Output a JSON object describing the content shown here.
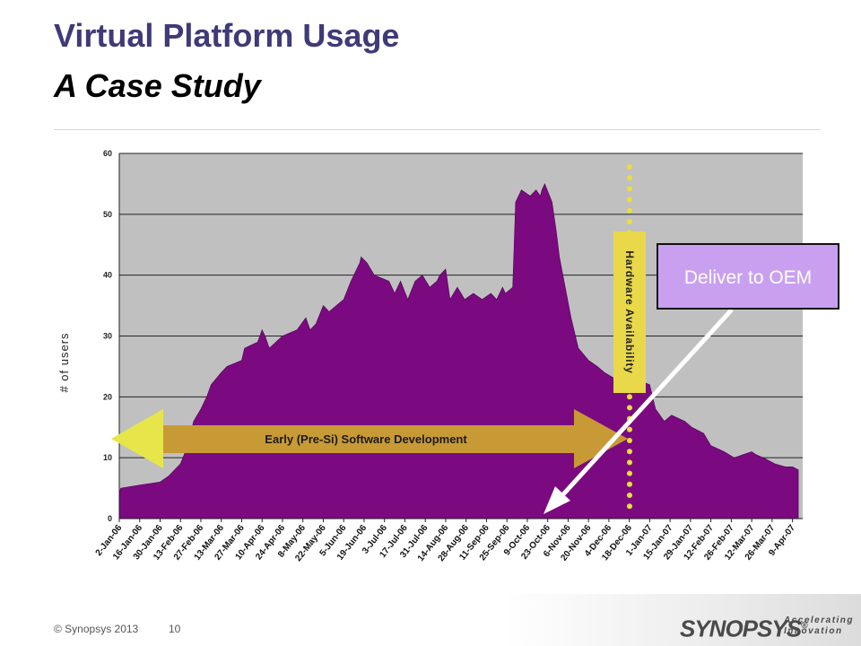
{
  "slide": {
    "title": "Virtual Platform Usage",
    "subtitle": "A Case Study",
    "footer_copyright": "© Synopsys 2013",
    "page_number": "10",
    "logo_text": "SYNOPSYS",
    "logo_registered": "®",
    "logo_tagline_1": "Accelerating",
    "logo_tagline_2": "Innovation"
  },
  "annotations": {
    "early_dev": "Early (Pre-Si) Software Development",
    "hw_availability": "Hardware Availability",
    "deliver": "Deliver to OEM"
  },
  "colors": {
    "area_fill": "#7b0a80",
    "plot_bg": "#c0c0c0",
    "arrow_yellow": "#e6e64a",
    "arrow_orange": "#c89a36",
    "dot_yellow": "#e8e03a",
    "callout_fill": "#c9a0f0",
    "title": "#3f3a78"
  },
  "chart_data": {
    "type": "area",
    "ylabel": "# of users",
    "ylim": [
      0,
      60
    ],
    "yticks": [
      0,
      10,
      20,
      30,
      40,
      50,
      60
    ],
    "grid": true,
    "xtick_labels": [
      "2-Jan-06",
      "16-Jan-06",
      "30-Jan-06",
      "13-Feb-06",
      "27-Feb-06",
      "13-Mar-06",
      "27-Mar-06",
      "10-Apr-06",
      "24-Apr-06",
      "8-May-06",
      "22-May-06",
      "5-Jun-06",
      "19-Jun-06",
      "3-Jul-06",
      "17-Jul-06",
      "31-Jul-06",
      "14-Aug-06",
      "28-Aug-06",
      "11-Sep-06",
      "25-Sep-06",
      "9-Oct-06",
      "23-Oct-06",
      "6-Nov-06",
      "20-Nov-06",
      "4-Dec-06",
      "18-Dec-06",
      "1-Jan-07",
      "15-Jan-07",
      "29-Jan-07",
      "12-Feb-07",
      "26-Feb-07",
      "12-Mar-07",
      "26-Mar-07",
      "9-Apr-07"
    ],
    "x": [
      "2-Jan-06",
      "3-Jan-06",
      "16-Jan-06",
      "30-Jan-06",
      "5-Feb-06",
      "13-Feb-06",
      "18-Feb-06",
      "22-Feb-06",
      "27-Feb-06",
      "3-Mar-06",
      "6-Mar-06",
      "13-Mar-06",
      "17-Mar-06",
      "27-Mar-06",
      "29-Mar-06",
      "7-Apr-06",
      "10-Apr-06",
      "12-Apr-06",
      "15-Apr-06",
      "24-Apr-06",
      "4-May-06",
      "10-May-06",
      "13-May-06",
      "17-May-06",
      "22-May-06",
      "26-May-06",
      "5-Jun-06",
      "10-Jun-06",
      "16-Jun-06",
      "17-Jun-06",
      "21-Jun-06",
      "26-Jun-06",
      "6-Jul-06",
      "10-Jul-06",
      "14-Jul-06",
      "19-Jul-06",
      "24-Jul-06",
      "29-Jul-06",
      "3-Aug-06",
      "8-Aug-06",
      "10-Aug-06",
      "14-Aug-06",
      "17-Aug-06",
      "22-Aug-06",
      "27-Aug-06",
      "2-Sep-06",
      "8-Sep-06",
      "14-Sep-06",
      "18-Sep-06",
      "22-Sep-06",
      "24-Sep-06",
      "29-Sep-06",
      "1-Oct-06",
      "5-Oct-06",
      "11-Oct-06",
      "15-Oct-06",
      "18-Oct-06",
      "19-Oct-06",
      "21-Oct-06",
      "26-Oct-06",
      "29-Oct-06",
      "31-Oct-06",
      "4-Nov-06",
      "8-Nov-06",
      "13-Nov-06",
      "20-Nov-06",
      "26-Nov-06",
      "1-Dec-06",
      "8-Dec-06",
      "12-Dec-06",
      "18-Dec-06",
      "22-Dec-06",
      "1-Jan-07",
      "5-Jan-07",
      "11-Jan-07",
      "16-Jan-07",
      "25-Jan-07",
      "30-Jan-07",
      "7-Feb-07",
      "12-Feb-07",
      "21-Feb-07",
      "28-Feb-07",
      "6-Mar-07",
      "12-Mar-07",
      "15-Mar-07",
      "20-Mar-07",
      "28-Mar-07",
      "4-Apr-07",
      "9-Apr-07",
      "13-Apr-07"
    ],
    "series": [
      {
        "values": [
          4,
          5,
          5.5,
          6,
          7,
          9,
          12,
          16,
          18,
          20,
          22,
          24,
          25,
          26,
          28,
          29,
          31,
          30,
          28,
          30,
          31,
          33,
          31,
          32,
          35,
          34,
          36,
          39,
          42,
          43,
          42,
          40,
          39,
          37,
          39,
          36,
          39,
          40,
          38,
          39,
          40,
          41,
          36,
          38,
          36,
          37,
          36,
          37,
          36,
          38,
          37,
          38,
          52,
          54,
          53,
          54,
          53,
          54,
          55,
          52,
          47,
          43,
          38,
          33,
          28,
          26,
          25,
          24,
          23,
          22,
          24,
          23,
          22,
          18,
          16,
          17,
          16,
          15,
          14,
          12,
          11,
          10,
          10.5,
          11,
          10.5,
          10,
          9,
          8.5,
          8.5,
          8
        ]
      }
    ]
  }
}
